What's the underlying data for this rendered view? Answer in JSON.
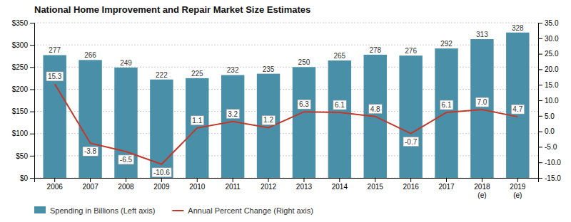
{
  "chart_data": {
    "type": "bar",
    "title": "National Home Improvement and Repair Market Size Estimates",
    "categories": [
      "2006",
      "2007",
      "2008",
      "2009",
      "2010",
      "2011",
      "2012",
      "2013",
      "2014",
      "2015",
      "2016",
      "2017",
      "2018\n(e)",
      "2019\n(e)"
    ],
    "series": [
      {
        "name": "Spending in Billions (Left axis)",
        "type": "bar",
        "color": "#4a8fa8",
        "values": [
          277,
          266,
          249,
          222,
          225,
          232,
          235,
          250,
          265,
          278,
          276,
          292,
          313,
          328
        ],
        "data_labels": true
      },
      {
        "name": "Annual Percent Change (Right axis)",
        "type": "line",
        "axis": "y2",
        "color": "#c0392b",
        "values": [
          15.3,
          -3.8,
          -6.5,
          -10.6,
          1.1,
          3.2,
          1.2,
          6.3,
          6.1,
          4.8,
          -0.7,
          6.1,
          7.0,
          4.7
        ],
        "value_labels": [
          "15.3",
          "-3.8",
          "-6.5",
          "-10.6",
          "1.1",
          "3.2",
          "1.2",
          "6.3",
          "6.1",
          "4.8",
          "-0.7",
          "6.1",
          "7.0",
          "4.7"
        ],
        "data_labels": true
      }
    ],
    "ylim": [
      0,
      350
    ],
    "yticks": [
      {
        "value": 0,
        "label": "$0"
      },
      {
        "value": 50,
        "label": "$50"
      },
      {
        "value": 100,
        "label": "$100"
      },
      {
        "value": 150,
        "label": "$150"
      },
      {
        "value": 200,
        "label": "$200"
      },
      {
        "value": 250,
        "label": "$250"
      },
      {
        "value": 300,
        "label": "$300"
      },
      {
        "value": 350,
        "label": "$350"
      }
    ],
    "y2lim": [
      -15,
      35
    ],
    "y2ticks": [
      {
        "value": -15,
        "label": "-15.0"
      },
      {
        "value": -10,
        "label": "-10.0"
      },
      {
        "value": -5,
        "label": "-5.0"
      },
      {
        "value": 0,
        "label": "0.0"
      },
      {
        "value": 5,
        "label": "5.0"
      },
      {
        "value": 10,
        "label": "10.0"
      },
      {
        "value": 15,
        "label": "15.0"
      },
      {
        "value": 20,
        "label": "20.0"
      },
      {
        "value": 25,
        "label": "25.0"
      },
      {
        "value": 30,
        "label": "30.0"
      },
      {
        "value": 35,
        "label": "35.0"
      }
    ],
    "grid": true,
    "legend": "bottom-left"
  }
}
